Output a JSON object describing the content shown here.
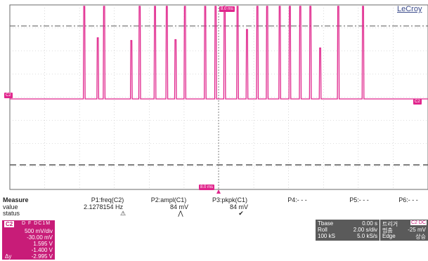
{
  "brand": "LeCroy",
  "colors": {
    "trace": "#e0258c",
    "grid": "#9a9a9a",
    "panel": "#5a5a5a",
    "channel": "#c81c78"
  },
  "markers": {
    "trigger_top": "8.0 ms",
    "c2_left": "C2",
    "c2_right": "C2",
    "cursor_bottom": "8.0 ms"
  },
  "measure": {
    "title": "Measure",
    "row_labels": [
      "value",
      "status"
    ],
    "columns": [
      {
        "name": "P1:freq(C2)",
        "value": "2.1278154 Hz",
        "status": "⚠"
      },
      {
        "name": "P2:ampl(C1)",
        "value": "84 mV",
        "status": "⋀"
      },
      {
        "name": "P3:pkpk(C1)",
        "value": "84 mV",
        "status": "✔"
      },
      {
        "name": "P4:- - -",
        "value": "",
        "status": ""
      },
      {
        "name": "P5:- - -",
        "value": "",
        "status": ""
      },
      {
        "name": "P6:- - -",
        "value": "",
        "status": ""
      }
    ]
  },
  "channel_box": {
    "tag": "C2",
    "badges": "D F DC1M",
    "lines": [
      "500 mV/div",
      "-30.00 mV",
      "1.595 V",
      "-1.400 V",
      "-2.995 V"
    ],
    "left_labels": [
      "",
      "",
      "",
      "",
      "Δy"
    ]
  },
  "timebase": {
    "rows": [
      {
        "label": "Tbase",
        "value": "0.00 s"
      },
      {
        "label": "Roll",
        "value": "2.00 s/div"
      },
      {
        "label": "100 kS",
        "value": "5.0 kS/s"
      }
    ]
  },
  "trigger": {
    "title": "트리거",
    "badge": "C2 DC",
    "rows": [
      {
        "label": "멈춤",
        "value": "-25 mV"
      },
      {
        "label": "Edge",
        "value": "상승"
      }
    ]
  },
  "waveform": {
    "baseline_level": 0,
    "pulse_times_div": [
      2.13,
      2.52,
      2.7,
      3.48,
      3.72,
      4.16,
      4.5,
      4.75,
      5.02,
      5.6,
      5.9,
      6.16,
      6.53,
      6.8,
      7.1,
      7.38,
      7.74,
      8.03,
      8.33,
      8.62,
      8.9,
      9.42,
      10.13
    ],
    "pulse_heights": [
      1,
      0.66,
      1,
      0.63,
      1,
      1,
      1,
      0.64,
      1,
      1,
      1,
      1,
      1,
      0.75,
      1,
      1,
      1,
      1,
      1,
      1,
      0.55,
      1,
      1
    ],
    "divisions_x": 12,
    "divisions_y": 8
  }
}
